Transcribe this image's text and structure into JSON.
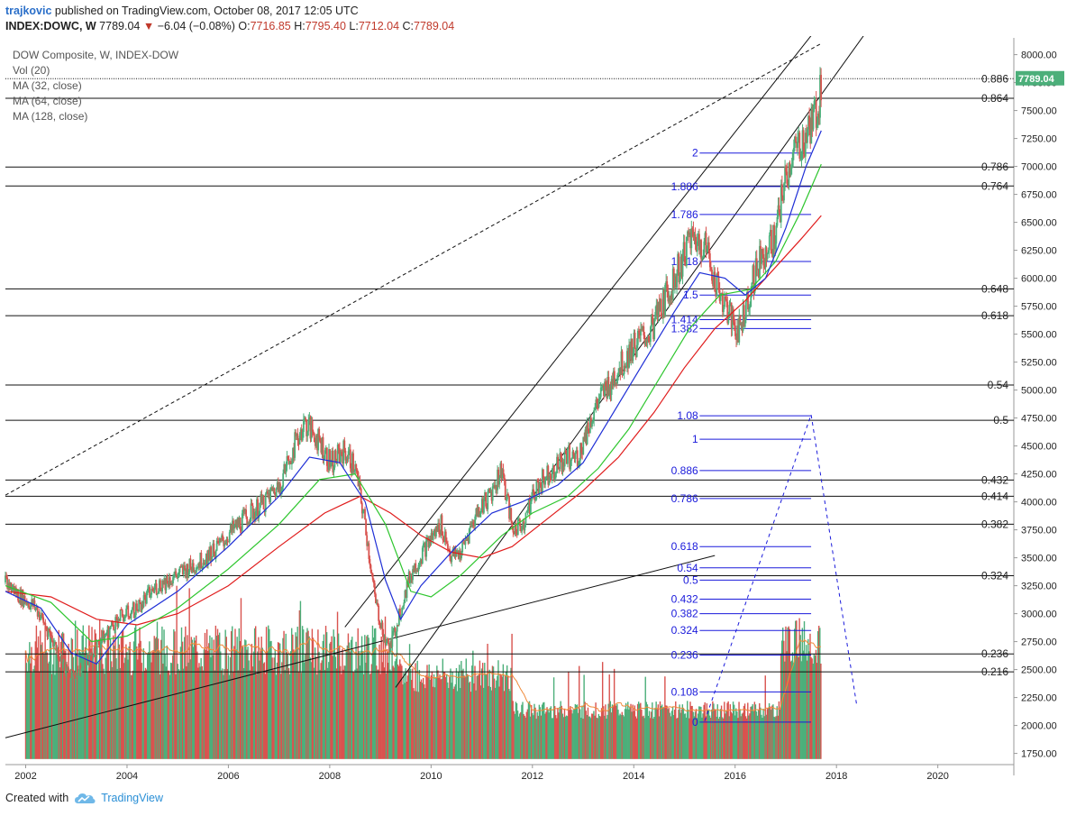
{
  "header": {
    "author": "trajkovic",
    "published_text": "published on TradingView.com, October 08, 2017 12:05 UTC",
    "symbol": "INDEX:DOWC, W",
    "last": "7789.04",
    "change": "−6.04 (−0.08%)",
    "o_label": "O:",
    "o_value": "7716.85",
    "h_label": "H:",
    "h_value": "7795.40",
    "l_label": "L:",
    "l_value": "7712.04",
    "c_label": "C:",
    "c_value": "7789.04"
  },
  "legend": [
    "DOW Composite, W, INDEX-DOW",
    "Vol (20)",
    "MA (32, close)",
    "MA (64, close)",
    "MA (128, close)"
  ],
  "footer": {
    "created_with": "Created with",
    "brand": "TradingView"
  },
  "colors": {
    "up": "#4caf7a",
    "down": "#d9534f",
    "ma32": "#1f2fd6",
    "ma64": "#2ec62e",
    "ma128": "#e01c1c",
    "vol_ma": "#f08a3a",
    "fib_text": "#1a1adb",
    "price_tag": "#4caf7a"
  },
  "chart_data": {
    "type": "line",
    "title": "DOW Composite, W, INDEX-DOW",
    "xlim": [
      2001.6,
      2021.5
    ],
    "ylim": [
      1650,
      8150
    ],
    "yscale": "linear",
    "y_ticks": [
      1750,
      2000,
      2250,
      2500,
      2750,
      3000,
      3250,
      3500,
      3750,
      4000,
      4250,
      4500,
      4750,
      5000,
      5250,
      5500,
      5750,
      6000,
      6250,
      6500,
      6750,
      7000,
      7250,
      7500,
      7750,
      8000
    ],
    "y_tick_labels": [
      "1750.00",
      "2000.00",
      "2250.00",
      "2500.00",
      "2750.00",
      "3000.00",
      "3250.00",
      "3500.00",
      "3750.00",
      "4000.00",
      "4250.00",
      "4500.00",
      "4750.00",
      "5000.00",
      "5250.00",
      "5500.00",
      "5750.00",
      "6000.00",
      "6250.00",
      "6500.00",
      "6750.00",
      "7000.00",
      "7250.00",
      "7500.00",
      "7750.00",
      "8000.00"
    ],
    "x_ticks": [
      2002,
      2004,
      2006,
      2008,
      2010,
      2012,
      2014,
      2016,
      2018,
      2020
    ],
    "x_tick_labels": [
      "2002",
      "2004",
      "2006",
      "2008",
      "2010",
      "2012",
      "2014",
      "2016",
      "2018",
      "2020"
    ],
    "last_price": 7789.04,
    "last_price_label": "7789.04",
    "price_path": [
      [
        2001.6,
        3280
      ],
      [
        2001.9,
        3150
      ],
      [
        2002.2,
        3050
      ],
      [
        2002.5,
        2800
      ],
      [
        2002.8,
        2480
      ],
      [
        2003.1,
        2500
      ],
      [
        2003.4,
        2700
      ],
      [
        2003.8,
        2950
      ],
      [
        2004.2,
        3050
      ],
      [
        2004.6,
        3250
      ],
      [
        2005.0,
        3350
      ],
      [
        2005.4,
        3450
      ],
      [
        2005.8,
        3600
      ],
      [
        2006.2,
        3800
      ],
      [
        2006.6,
        3950
      ],
      [
        2007.0,
        4150
      ],
      [
        2007.3,
        4500
      ],
      [
        2007.5,
        4700
      ],
      [
        2007.8,
        4550
      ],
      [
        2008.0,
        4350
      ],
      [
        2008.3,
        4450
      ],
      [
        2008.5,
        4300
      ],
      [
        2008.7,
        3800
      ],
      [
        2008.9,
        3100
      ],
      [
        2009.1,
        2750
      ],
      [
        2009.2,
        2700
      ],
      [
        2009.4,
        3050
      ],
      [
        2009.6,
        3350
      ],
      [
        2009.9,
        3600
      ],
      [
        2010.2,
        3800
      ],
      [
        2010.4,
        3500
      ],
      [
        2010.6,
        3550
      ],
      [
        2010.9,
        3900
      ],
      [
        2011.2,
        4100
      ],
      [
        2011.4,
        4300
      ],
      [
        2011.6,
        3750
      ],
      [
        2011.8,
        3800
      ],
      [
        2012.1,
        4150
      ],
      [
        2012.4,
        4300
      ],
      [
        2012.7,
        4400
      ],
      [
        2012.9,
        4400
      ],
      [
        2013.2,
        4800
      ],
      [
        2013.5,
        5050
      ],
      [
        2013.8,
        5250
      ],
      [
        2014.0,
        5400
      ],
      [
        2014.3,
        5500
      ],
      [
        2014.6,
        5800
      ],
      [
        2014.9,
        6100
      ],
      [
        2015.1,
        6350
      ],
      [
        2015.4,
        6300
      ],
      [
        2015.6,
        6000
      ],
      [
        2015.8,
        5750
      ],
      [
        2016.0,
        5550
      ],
      [
        2016.1,
        5550
      ],
      [
        2016.3,
        5900
      ],
      [
        2016.5,
        6200
      ],
      [
        2016.8,
        6350
      ],
      [
        2016.9,
        6700
      ],
      [
        2017.1,
        7050
      ],
      [
        2017.3,
        7200
      ],
      [
        2017.5,
        7350
      ],
      [
        2017.65,
        7550
      ],
      [
        2017.7,
        7789
      ]
    ],
    "ma32": [
      [
        2001.6,
        3200
      ],
      [
        2002.3,
        3050
      ],
      [
        2002.9,
        2650
      ],
      [
        2003.4,
        2550
      ],
      [
        2004.0,
        2900
      ],
      [
        2005.0,
        3200
      ],
      [
        2006.0,
        3600
      ],
      [
        2007.0,
        4050
      ],
      [
        2007.6,
        4400
      ],
      [
        2008.2,
        4350
      ],
      [
        2008.7,
        4000
      ],
      [
        2009.1,
        3300
      ],
      [
        2009.4,
        2950
      ],
      [
        2009.8,
        3250
      ],
      [
        2010.5,
        3600
      ],
      [
        2011.2,
        3900
      ],
      [
        2011.8,
        4000
      ],
      [
        2012.5,
        4150
      ],
      [
        2013.0,
        4350
      ],
      [
        2013.6,
        4800
      ],
      [
        2014.2,
        5250
      ],
      [
        2014.8,
        5700
      ],
      [
        2015.3,
        6050
      ],
      [
        2015.8,
        6000
      ],
      [
        2016.2,
        5850
      ],
      [
        2016.6,
        6000
      ],
      [
        2017.0,
        6450
      ],
      [
        2017.4,
        7000
      ],
      [
        2017.7,
        7320
      ]
    ],
    "ma64": [
      [
        2001.6,
        3250
      ],
      [
        2002.5,
        3100
      ],
      [
        2003.3,
        2750
      ],
      [
        2004.0,
        2800
      ],
      [
        2005.0,
        3050
      ],
      [
        2006.0,
        3400
      ],
      [
        2007.0,
        3800
      ],
      [
        2007.8,
        4200
      ],
      [
        2008.5,
        4250
      ],
      [
        2009.1,
        3800
      ],
      [
        2009.6,
        3200
      ],
      [
        2010.0,
        3150
      ],
      [
        2010.6,
        3350
      ],
      [
        2011.4,
        3700
      ],
      [
        2012.0,
        3900
      ],
      [
        2012.7,
        4050
      ],
      [
        2013.3,
        4300
      ],
      [
        2013.9,
        4650
      ],
      [
        2014.5,
        5100
      ],
      [
        2015.1,
        5550
      ],
      [
        2015.7,
        5850
      ],
      [
        2016.3,
        5900
      ],
      [
        2016.8,
        6150
      ],
      [
        2017.3,
        6600
      ],
      [
        2017.7,
        7020
      ]
    ],
    "ma128": [
      [
        2001.6,
        3200
      ],
      [
        2002.5,
        3150
      ],
      [
        2003.4,
        2950
      ],
      [
        2004.2,
        2900
      ],
      [
        2005.0,
        3000
      ],
      [
        2006.0,
        3250
      ],
      [
        2007.0,
        3600
      ],
      [
        2007.9,
        3900
      ],
      [
        2008.6,
        4050
      ],
      [
        2009.2,
        3900
      ],
      [
        2009.8,
        3700
      ],
      [
        2010.4,
        3550
      ],
      [
        2011.0,
        3500
      ],
      [
        2011.6,
        3600
      ],
      [
        2012.3,
        3850
      ],
      [
        2013.0,
        4100
      ],
      [
        2013.7,
        4400
      ],
      [
        2014.4,
        4800
      ],
      [
        2015.0,
        5200
      ],
      [
        2015.6,
        5550
      ],
      [
        2016.2,
        5800
      ],
      [
        2016.8,
        6100
      ],
      [
        2017.3,
        6350
      ],
      [
        2017.7,
        6560
      ]
    ],
    "horizontal_levels": [
      {
        "label": "0.886",
        "y": 7785,
        "style": "dotted"
      },
      {
        "label": "0.864",
        "y": 7610
      },
      {
        "label": "0.786",
        "y": 6995
      },
      {
        "label": "0.764",
        "y": 6825
      },
      {
        "label": "0.648",
        "y": 5905
      },
      {
        "label": "0.618",
        "y": 5665
      },
      {
        "label": "0.54",
        "y": 5045
      },
      {
        "label": "0.5",
        "y": 4730
      },
      {
        "label": "0.432",
        "y": 4195
      },
      {
        "label": "0.414",
        "y": 4050
      },
      {
        "label": "0.382",
        "y": 3800
      },
      {
        "label": "0.324",
        "y": 3340
      },
      {
        "label": "0.236",
        "y": 2640
      },
      {
        "label": "0.216",
        "y": 2480
      }
    ],
    "fib_extension_upper": [
      {
        "label": "2",
        "y": 7120
      },
      {
        "label": "1.886",
        "y": 6820
      },
      {
        "label": "1.786",
        "y": 6570
      },
      {
        "label": "1.618",
        "y": 6150
      },
      {
        "label": "1.5",
        "y": 5850
      },
      {
        "label": "1.414",
        "y": 5630
      },
      {
        "label": "1.382",
        "y": 5550
      }
    ],
    "fib_projection_lower": [
      {
        "label": "1.08",
        "y": 4770
      },
      {
        "label": "1",
        "y": 4560
      },
      {
        "label": "0.886",
        "y": 4280
      },
      {
        "label": "0.786",
        "y": 4030
      },
      {
        "label": "0.618",
        "y": 3600
      },
      {
        "label": "0.54",
        "y": 3410
      },
      {
        "label": "0.5",
        "y": 3300
      },
      {
        "label": "0.432",
        "y": 3130
      },
      {
        "label": "0.382",
        "y": 3000
      },
      {
        "label": "0.324",
        "y": 2850
      },
      {
        "label": "0.236",
        "y": 2630
      },
      {
        "label": "0.108",
        "y": 2300
      },
      {
        "label": "0",
        "y": 2030
      }
    ],
    "trend_lines": [
      {
        "style": "solid",
        "from": [
          2008.3,
          2880
        ],
        "to": [
          2017.9,
          8400
        ]
      },
      {
        "style": "solid",
        "from": [
          2009.3,
          2340
        ],
        "to": [
          2018.9,
          8400
        ]
      },
      {
        "style": "solid",
        "from": [
          2001.6,
          1890
        ],
        "to": [
          2015.6,
          3520
        ]
      },
      {
        "style": "dashed",
        "from": [
          2001.6,
          4060
        ],
        "to": [
          2017.7,
          8100
        ]
      }
    ],
    "projection_path": [
      [
        2015.4,
        2040
      ],
      [
        2017.5,
        4780
      ],
      [
        2018.4,
        2180
      ]
    ],
    "volume": {
      "y_base": 1700,
      "y_top_of_scale": 3150,
      "note": "volume bars overlaid on price pane"
    }
  }
}
